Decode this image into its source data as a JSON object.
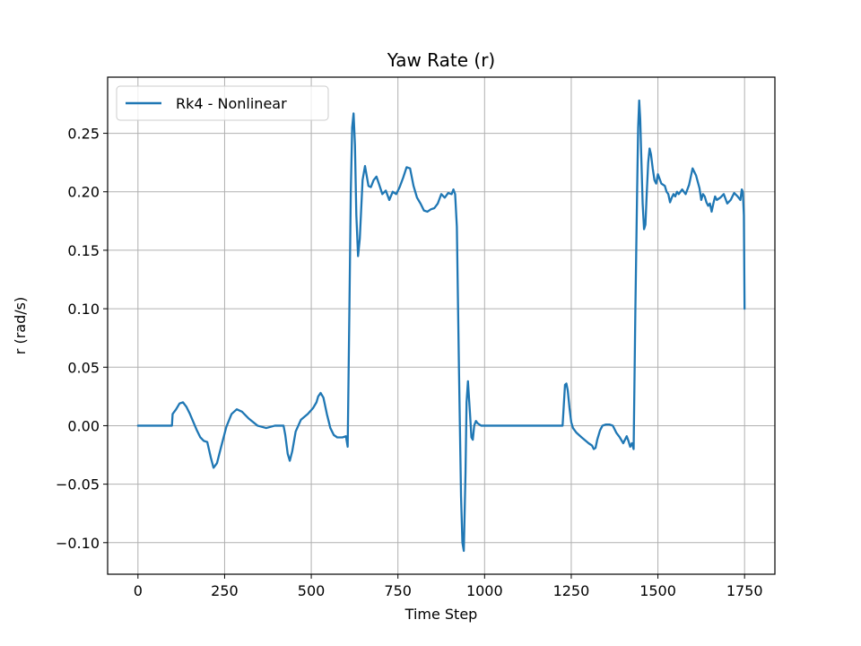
{
  "chart_data": {
    "type": "line",
    "title": "Yaw Rate (r)",
    "xlabel": "Time Step",
    "ylabel": "r (rad/s)",
    "xlim": [
      -87.5,
      1837.5
    ],
    "ylim": [
      -0.127,
      0.298
    ],
    "xticks": [
      0,
      250,
      500,
      750,
      1000,
      1250,
      1500,
      1750
    ],
    "xtick_labels": [
      "0",
      "250",
      "500",
      "750",
      "1000",
      "1250",
      "1500",
      "1750"
    ],
    "yticks": [
      -0.1,
      -0.05,
      0.0,
      0.05,
      0.1,
      0.15,
      0.2,
      0.25
    ],
    "ytick_labels": [
      "−0.10",
      "−0.05",
      "0.00",
      "0.05",
      "0.10",
      "0.15",
      "0.20",
      "0.25"
    ],
    "grid": true,
    "legend_position": "upper-left",
    "series": [
      {
        "name": "Rk4 - Nonlinear",
        "color": "#1f77b4",
        "x": [
          0,
          98,
          100,
          110,
          120,
          130,
          140,
          150,
          160,
          170,
          180,
          190,
          200,
          210,
          218,
          228,
          240,
          255,
          270,
          285,
          300,
          320,
          345,
          370,
          395,
          420,
          425,
          432,
          438,
          445,
          455,
          470,
          490,
          505,
          515,
          520,
          527,
          535,
          545,
          555,
          565,
          575,
          590,
          600,
          605,
          610,
          614,
          618,
          622,
          626,
          630,
          635,
          640,
          648,
          655,
          665,
          672,
          680,
          688,
          695,
          705,
          715,
          725,
          735,
          745,
          755,
          765,
          775,
          785,
          795,
          805,
          815,
          825,
          835,
          845,
          855,
          865,
          875,
          885,
          895,
          905,
          910,
          915,
          920,
          926,
          932,
          936,
          940,
          945,
          948,
          952,
          958,
          962,
          966,
          970,
          975,
          980,
          990,
          1000,
          1010,
          1030,
          1100,
          1150,
          1200,
          1225,
          1228,
          1232,
          1236,
          1240,
          1245,
          1250,
          1255,
          1265,
          1280,
          1300,
          1310,
          1315,
          1320,
          1325,
          1333,
          1340,
          1350,
          1360,
          1370,
          1380,
          1390,
          1400,
          1410,
          1415,
          1420,
          1425,
          1430,
          1435,
          1440,
          1443,
          1446,
          1449,
          1452,
          1456,
          1460,
          1464,
          1468,
          1472,
          1476,
          1480,
          1485,
          1490,
          1495,
          1500,
          1510,
          1520,
          1525,
          1530,
          1535,
          1540,
          1545,
          1550,
          1555,
          1560,
          1570,
          1580,
          1590,
          1600,
          1610,
          1620,
          1625,
          1630,
          1635,
          1640,
          1645,
          1650,
          1655,
          1660,
          1665,
          1670,
          1680,
          1690,
          1700,
          1710,
          1720,
          1730,
          1738,
          1742,
          1745,
          1748,
          1750
        ],
        "values": [
          0.0,
          0.0,
          0.01,
          0.014,
          0.019,
          0.02,
          0.016,
          0.01,
          0.003,
          -0.004,
          -0.01,
          -0.013,
          -0.014,
          -0.027,
          -0.036,
          -0.032,
          -0.018,
          -0.001,
          0.01,
          0.014,
          0.012,
          0.006,
          0.0,
          -0.002,
          0.0,
          0.0,
          -0.008,
          -0.024,
          -0.03,
          -0.022,
          -0.005,
          0.005,
          0.01,
          0.015,
          0.02,
          0.025,
          0.028,
          0.024,
          0.01,
          -0.002,
          -0.008,
          -0.01,
          -0.01,
          -0.009,
          -0.018,
          0.1,
          0.2,
          0.255,
          0.267,
          0.24,
          0.18,
          0.145,
          0.16,
          0.21,
          0.222,
          0.205,
          0.204,
          0.21,
          0.213,
          0.207,
          0.198,
          0.201,
          0.193,
          0.2,
          0.198,
          0.204,
          0.212,
          0.221,
          0.22,
          0.205,
          0.195,
          0.19,
          0.184,
          0.183,
          0.185,
          0.186,
          0.19,
          0.198,
          0.195,
          0.199,
          0.198,
          0.202,
          0.198,
          0.17,
          0.05,
          -0.06,
          -0.1,
          -0.107,
          -0.04,
          0.02,
          0.038,
          0.01,
          -0.01,
          -0.012,
          0.0,
          0.004,
          0.002,
          0.0,
          0.0,
          0.0,
          0.0,
          0.0,
          0.0,
          0.0,
          0.0,
          0.015,
          0.035,
          0.036,
          0.03,
          0.015,
          0.003,
          -0.002,
          -0.006,
          -0.01,
          -0.015,
          -0.017,
          -0.02,
          -0.019,
          -0.012,
          -0.004,
          0.0,
          0.001,
          0.001,
          0.0,
          -0.006,
          -0.01,
          -0.015,
          -0.009,
          -0.013,
          -0.018,
          -0.015,
          -0.02,
          0.1,
          0.2,
          0.255,
          0.278,
          0.262,
          0.23,
          0.19,
          0.168,
          0.172,
          0.2,
          0.225,
          0.237,
          0.232,
          0.22,
          0.21,
          0.207,
          0.215,
          0.207,
          0.205,
          0.2,
          0.198,
          0.191,
          0.195,
          0.198,
          0.196,
          0.2,
          0.198,
          0.202,
          0.198,
          0.206,
          0.22,
          0.214,
          0.203,
          0.193,
          0.198,
          0.196,
          0.191,
          0.188,
          0.19,
          0.183,
          0.19,
          0.196,
          0.193,
          0.195,
          0.198,
          0.19,
          0.193,
          0.199,
          0.196,
          0.193,
          0.202,
          0.2,
          0.18,
          0.1
        ]
      }
    ]
  }
}
